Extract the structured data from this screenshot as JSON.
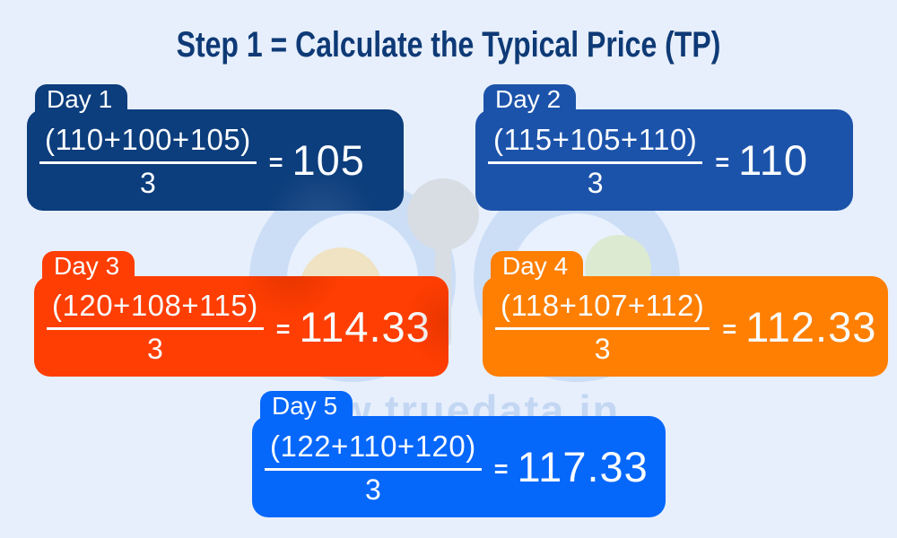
{
  "title": "Step 1 = Calculate the Typical Price (TP)",
  "watermark": {
    "text": "www.truedata.in"
  },
  "colors": {
    "background": "#e7effc",
    "title": "#0e3a76",
    "text_on_card": "#fafcff"
  },
  "cards": [
    {
      "day": "Day 1",
      "numerator": "(110+100+105)",
      "denominator": "3",
      "equals": "=",
      "result": "105",
      "color": "#0c3d7c"
    },
    {
      "day": "Day 2",
      "numerator": "(115+105+110)",
      "denominator": "3",
      "equals": "=",
      "result": "110",
      "color": "#1c53aa"
    },
    {
      "day": "Day 3",
      "numerator": "(120+108+115)",
      "denominator": "3",
      "equals": "=",
      "result": "114.33",
      "color": "#fe3e02"
    },
    {
      "day": "Day 4",
      "numerator": "(118+107+112)",
      "denominator": "3",
      "equals": "=",
      "result": "112.33",
      "color": "#fe7f01"
    },
    {
      "day": "Day 5",
      "numerator": "(122+110+120)",
      "denominator": "3",
      "equals": "=",
      "result": "117.33",
      "color": "#0667fb"
    }
  ]
}
